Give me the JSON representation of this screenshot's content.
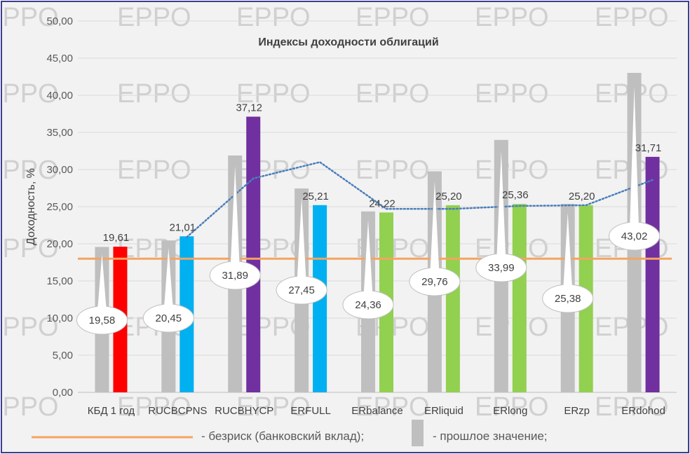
{
  "watermark": "EPPO",
  "chart_data": {
    "type": "bar",
    "title": "Индексы доходности облигаций",
    "xlabel": "",
    "ylabel": "Доходность, %",
    "ylim": [
      0,
      50
    ],
    "ytick_step": 5,
    "tick_labels": [
      "0,00",
      "5,00",
      "10,00",
      "15,00",
      "20,00",
      "25,00",
      "30,00",
      "35,00",
      "40,00",
      "45,00",
      "50,00"
    ],
    "grid": true,
    "categories": [
      "КБД 1 год",
      "RUCBCPNS",
      "RUCBHYCP",
      "ERFULL",
      "ERbalance",
      "ERliquid",
      "ERlong",
      "ERzp",
      "ERdohod"
    ],
    "series": [
      {
        "role": "previous",
        "values": [
          19.58,
          20.45,
          31.89,
          27.45,
          24.36,
          29.76,
          33.99,
          25.38,
          43.02
        ],
        "labels": [
          "19,58",
          "20,45",
          "31,89",
          "27,45",
          "24,36",
          "29,76",
          "33,99",
          "25,38",
          "43,02"
        ],
        "color": "#bfbfbf"
      },
      {
        "role": "current",
        "values": [
          19.61,
          21.01,
          37.12,
          25.21,
          24.22,
          25.2,
          25.36,
          25.2,
          31.71
        ],
        "labels": [
          "19,61",
          "21,01",
          "37,12",
          "25,21",
          "24,22",
          "25,20",
          "25,36",
          "25,20",
          "31,71"
        ],
        "colors": [
          "#ff0000",
          "#00b0f0",
          "#7030a0",
          "#00b0f0",
          "#92d050",
          "#92d050",
          "#92d050",
          "#92d050",
          "#7030a0"
        ]
      }
    ],
    "risk_free": {
      "value": 18.0,
      "color": "#f4a460"
    },
    "trend_line": {
      "values": [
        null,
        20.9,
        28.8,
        31.0,
        24.7,
        24.7,
        25.1,
        25.2,
        28.6
      ],
      "color": "#4a7ebb",
      "style": "dotted"
    }
  },
  "legend": {
    "risk_free_label": "- безриск (банковский вклад);",
    "previous_label": "- прошлое значение;"
  }
}
